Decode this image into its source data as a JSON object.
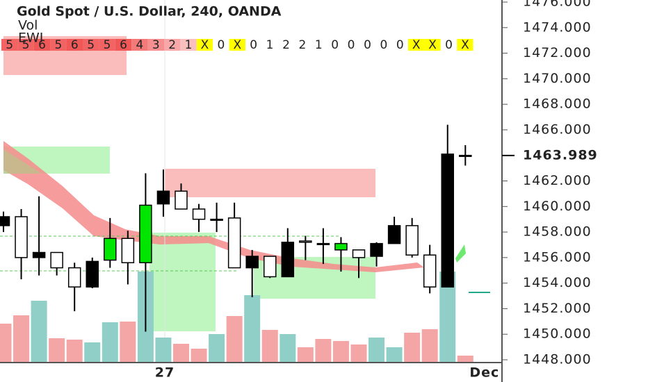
{
  "chart_data": {
    "type": "candlestick",
    "title": "Gold Spot / U.S. Dollar, 240, OANDA",
    "categories": [
      null,
      null,
      null,
      null,
      null,
      null,
      null,
      null,
      null,
      "27",
      null,
      null,
      null,
      null,
      null,
      null,
      null,
      null,
      null,
      null,
      null,
      null,
      null,
      null,
      null,
      null,
      null,
      "Dec"
    ],
    "open": [
      1459.2,
      1456.0,
      1456.4,
      1455.2,
      1453.7,
      1455.7,
      1455.8,
      1455.6,
      1455.6,
      1461.2,
      1459.8,
      1459.0,
      1459.0,
      1455.2,
      1456.1,
      1454.5,
      1457.2,
      1457.2,
      1457.1,
      1456.6,
      1456.0,
      1457.1,
      1458.5,
      1456.2,
      1453.7,
      1464.1,
      1464.0,
      null
    ],
    "high": [
      1459.6,
      1459.8,
      1460.8,
      1456.4,
      1455.6,
      1456.0,
      1459.1,
      1458.1,
      1462.6,
      1462.9,
      1461.8,
      1460.2,
      1460.3,
      1460.3,
      1456.6,
      1456.1,
      1458.3,
      1457.7,
      1458.3,
      1457.6,
      1456.6,
      1457.2,
      1459.2,
      1459.1,
      1457.0,
      1466.4,
      1464.8,
      null
    ],
    "low": [
      1458.0,
      1454.3,
      1454.6,
      1454.6,
      1451.8,
      1453.6,
      1455.2,
      1453.9,
      1450.2,
      1459.2,
      1459.8,
      1458.0,
      1458.0,
      1455.2,
      1452.9,
      1454.4,
      1454.5,
      1455.8,
      1455.5,
      1454.9,
      1454.4,
      1455.3,
      1457.1,
      1456.0,
      1453.2,
      1453.7,
      1463.2,
      null
    ],
    "close": [
      1458.5,
      1459.2,
      1456.0,
      1456.4,
      1455.2,
      1453.7,
      1457.5,
      1457.5,
      1460.1,
      1460.2,
      1461.2,
      1459.8,
      1459.0,
      1459.1,
      1455.2,
      1456.1,
      1454.5,
      1457.3,
      1457.1,
      1457.1,
      1456.6,
      1456.1,
      1457.1,
      1458.5,
      1456.2,
      1453.7,
      1464.0,
      null
    ],
    "colors": [
      "#000000",
      "#ffffff",
      "#000000",
      "#ffffff",
      "#ffffff",
      "#000000",
      "#00e600",
      "#ffffff",
      "#00e600",
      "#000000",
      "#ffffff",
      "#ffffff",
      "#000000",
      "#ffffff",
      "#000000",
      "#ffffff",
      "#000000",
      "#ffffff",
      "#ffffff",
      "#00e600",
      "#ffffff",
      "#000000",
      "#000000",
      "#ffffff",
      "#ffffff",
      "#000000",
      "#ffffff",
      null
    ],
    "volume": {
      "name": "Vol",
      "values": [
        56,
        68,
        89,
        35,
        33,
        29,
        58,
        59,
        131,
        36,
        27,
        20,
        41,
        67,
        97,
        47,
        41,
        22,
        34,
        31,
        26,
        36,
        22,
        43,
        48,
        131,
        10,
        null
      ],
      "colors": [
        "#f4a6a6",
        "#f4a6a6",
        "#8fcfc7",
        "#f4a6a6",
        "#f4a6a6",
        "#8fcfc7",
        "#8fcfc7",
        "#f4a6a6",
        "#8fcfc7",
        "#8fcfc7",
        "#f4a6a6",
        "#f4a6a6",
        "#8fcfc7",
        "#f4a6a6",
        "#8fcfc7",
        "#f4a6a6",
        "#8fcfc7",
        "#f4a6a6",
        "#f4a6a6",
        "#f4a6a6",
        "#f4a6a6",
        "#8fcfc7",
        "#8fcfc7",
        "#f4a6a6",
        "#f4a6a6",
        "#8fcfc7",
        "#f4a6a6",
        null
      ]
    },
    "ewi": {
      "name": "EWI",
      "cells": [
        "5",
        "5",
        "6",
        "5",
        "6",
        "5",
        "5",
        "6",
        "4",
        "3",
        "2",
        "1",
        "X",
        "0",
        "X",
        "0",
        "1",
        "2",
        "2",
        "1",
        "0",
        "0",
        "0",
        "0",
        "0",
        "X",
        "X",
        "0",
        "X"
      ],
      "colors": [
        "#f26464",
        "#f26464",
        "#f05858",
        "#f26464",
        "#f05858",
        "#f26464",
        "#f26464",
        "#f05858",
        "#f47a7a",
        "#f69090",
        "#f8a8a8",
        "#fac0c0",
        "#ffff00",
        "#ffffff",
        "#ffff00",
        "#ffffff",
        "#ffffff",
        "#ffffff",
        "#ffffff",
        "#ffffff",
        "#ffffff",
        "#ffffff",
        "#ffffff",
        "#ffffff",
        "#ffffff",
        "#ffff00",
        "#ffff00",
        "#ffffff",
        "#ffff00"
      ]
    },
    "last_price": 1463.989,
    "ylim": [
      1448,
      1476
    ],
    "yticks": [
      {
        "value": 1448,
        "label": "1448.000"
      },
      {
        "value": 1450,
        "label": "1450.000"
      },
      {
        "value": 1452,
        "label": "1452.000"
      },
      {
        "value": 1454,
        "label": "1454.000"
      },
      {
        "value": 1456,
        "label": "1456.000"
      },
      {
        "value": 1458,
        "label": "1458.000"
      },
      {
        "value": 1460,
        "label": "1460.000"
      },
      {
        "value": 1462,
        "label": "1462.000"
      },
      {
        "value": 1464,
        "label": "1464.000"
      },
      {
        "value": 1466,
        "label": "1466.000"
      },
      {
        "value": 1468,
        "label": "1468.000"
      },
      {
        "value": 1470,
        "label": "1470.000"
      },
      {
        "value": 1472,
        "label": "1472.000"
      },
      {
        "value": 1474,
        "label": "1474.000"
      },
      {
        "value": 1476,
        "label": "1476.000"
      }
    ]
  }
}
